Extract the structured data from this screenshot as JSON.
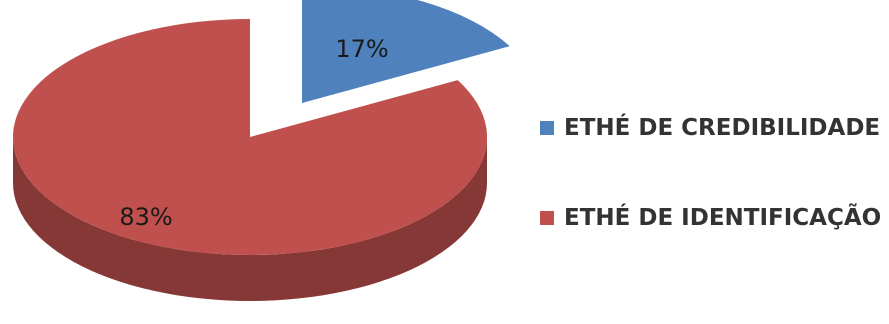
{
  "chart_data": {
    "type": "pie",
    "style": "3d-exploded",
    "categories": [
      "ETHÉ DE CREDIBILIDADE",
      "ETHÉ DE IDENTIFICAÇÃO"
    ],
    "values": [
      17,
      83
    ],
    "value_labels": [
      "17%",
      "83%"
    ],
    "colors": [
      "#4F81BD",
      "#C0504D"
    ],
    "legend_position": "right"
  },
  "legend": {
    "items": [
      {
        "label": "ETHÉ DE CREDIBILIDADE",
        "color": "#4F81BD"
      },
      {
        "label": "ETHÉ DE IDENTIFICAÇÃO",
        "color": "#C0504D"
      }
    ]
  }
}
